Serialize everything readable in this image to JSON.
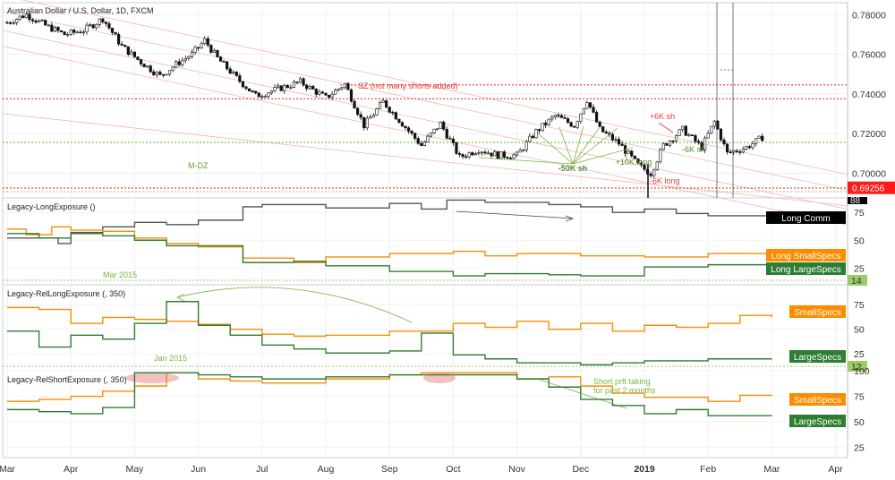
{
  "chart_data": {
    "type": "candlestick",
    "title": "Australian Dollar / U.S. Dollar, 1D, FXCM",
    "x_months": [
      "Mar",
      "Apr",
      "May",
      "Jun",
      "Jul",
      "Aug",
      "Sep",
      "Oct",
      "Nov",
      "Dec",
      "2019",
      "Feb",
      "Mar",
      "Apr"
    ],
    "price_panel": {
      "ylim": [
        0.6875,
        0.786
      ],
      "ticks": [
        "0.78000",
        "0.76000",
        "0.74000",
        "0.72000",
        "0.70000"
      ],
      "last_price_label": "0.69256",
      "last_price": 0.6926,
      "close_path": [
        {
          "m": 0.0,
          "v": 0.776
        },
        {
          "m": 0.3,
          "v": 0.78
        },
        {
          "m": 0.6,
          "v": 0.7745
        },
        {
          "m": 0.9,
          "v": 0.77
        },
        {
          "m": 1.2,
          "v": 0.772
        },
        {
          "m": 1.5,
          "v": 0.778
        },
        {
          "m": 1.8,
          "v": 0.764
        },
        {
          "m": 2.1,
          "v": 0.756
        },
        {
          "m": 2.4,
          "v": 0.749
        },
        {
          "m": 2.7,
          "v": 0.756
        },
        {
          "m": 2.9,
          "v": 0.76
        },
        {
          "m": 3.1,
          "v": 0.767
        },
        {
          "m": 3.3,
          "v": 0.758
        },
        {
          "m": 3.6,
          "v": 0.748
        },
        {
          "m": 3.9,
          "v": 0.739
        },
        {
          "m": 4.2,
          "v": 0.742
        },
        {
          "m": 4.6,
          "v": 0.746
        },
        {
          "m": 5.0,
          "v": 0.738
        },
        {
          "m": 5.3,
          "v": 0.745
        },
        {
          "m": 5.6,
          "v": 0.724
        },
        {
          "m": 5.9,
          "v": 0.736
        },
        {
          "m": 6.2,
          "v": 0.725
        },
        {
          "m": 6.5,
          "v": 0.714
        },
        {
          "m": 6.8,
          "v": 0.725
        },
        {
          "m": 7.1,
          "v": 0.708
        },
        {
          "m": 7.4,
          "v": 0.712
        },
        {
          "m": 7.7,
          "v": 0.709
        },
        {
          "m": 8.0,
          "v": 0.709
        },
        {
          "m": 8.3,
          "v": 0.721
        },
        {
          "m": 8.6,
          "v": 0.729
        },
        {
          "m": 8.9,
          "v": 0.724
        },
        {
          "m": 9.1,
          "v": 0.737
        },
        {
          "m": 9.3,
          "v": 0.722
        },
        {
          "m": 9.6,
          "v": 0.715
        },
        {
          "m": 9.9,
          "v": 0.704
        },
        {
          "m": 10.1,
          "v": 0.7
        },
        {
          "m": 10.3,
          "v": 0.714
        },
        {
          "m": 10.6,
          "v": 0.722
        },
        {
          "m": 10.9,
          "v": 0.713
        },
        {
          "m": 11.1,
          "v": 0.726
        },
        {
          "m": 11.3,
          "v": 0.71
        },
        {
          "m": 11.6,
          "v": 0.713
        },
        {
          "m": 11.9,
          "v": 0.719
        }
      ],
      "lines": [
        {
          "kind": "resistance",
          "value": 0.7445,
          "color": "#e53935"
        },
        {
          "kind": "resistance",
          "value": 0.7375,
          "color": "#e53935"
        },
        {
          "kind": "support",
          "value": 0.7155,
          "color": "#7cb342"
        },
        {
          "kind": "support",
          "value": 0.6925,
          "color": "#e53935"
        }
      ],
      "annotations": [
        {
          "text": "SZ (not many shorts added)",
          "color": "#e53935"
        },
        {
          "text": "M-DZ",
          "color": "#689f38"
        },
        {
          "text": "-50K sh",
          "color": "#558b2f"
        },
        {
          "text": "+10K long",
          "color": "#558b2f"
        },
        {
          "text": "-6K long",
          "color": "#e53935"
        },
        {
          "text": "+6K sh",
          "color": "#e53935"
        },
        {
          "text": "-6K sh",
          "color": "#558b2f"
        }
      ]
    },
    "panels": [
      {
        "name": "Legacy-LongExposure ()",
        "ylim": [
          10,
          88
        ],
        "ticks": [
          75,
          50,
          25
        ],
        "top_tag": "88",
        "min_tag": "14",
        "note": "Mar 2015",
        "series": [
          {
            "name": "Long Comm",
            "color": "#555555",
            "label_bg": "#000000",
            "points": [
              [
                0,
                52
              ],
              [
                0.8,
                47
              ],
              [
                1.0,
                57
              ],
              [
                1.5,
                62
              ],
              [
                2.0,
                66
              ],
              [
                2.5,
                64
              ],
              [
                3.0,
                68
              ],
              [
                3.5,
                68
              ],
              [
                3.7,
                80
              ],
              [
                4.0,
                82
              ],
              [
                5.0,
                79
              ],
              [
                6.0,
                83
              ],
              [
                6.5,
                78
              ],
              [
                6.9,
                86
              ],
              [
                7.5,
                84
              ],
              [
                8.5,
                82
              ],
              [
                9.0,
                80
              ],
              [
                9.5,
                75
              ],
              [
                10.0,
                78
              ],
              [
                10.5,
                74
              ],
              [
                11.0,
                72
              ],
              [
                12.0,
                72
              ]
            ]
          },
          {
            "name": "Long SmallSpecs",
            "color": "#fb8c00",
            "label_bg": "#fb8c00",
            "points": [
              [
                0,
                60
              ],
              [
                0.3,
                55
              ],
              [
                0.7,
                62
              ],
              [
                1.0,
                59
              ],
              [
                1.5,
                58
              ],
              [
                2.0,
                52
              ],
              [
                2.5,
                47
              ],
              [
                3.0,
                44
              ],
              [
                3.7,
                34
              ],
              [
                4.5,
                30
              ],
              [
                5.0,
                35
              ],
              [
                6.0,
                38
              ],
              [
                7.0,
                40
              ],
              [
                7.5,
                36
              ],
              [
                8.0,
                38
              ],
              [
                9.0,
                36
              ],
              [
                10.0,
                35
              ],
              [
                11.0,
                38
              ],
              [
                12.0,
                38
              ]
            ]
          },
          {
            "name": "Long LargeSpecs",
            "color": "#2e7d32",
            "label_bg": "#2e7d32",
            "points": [
              [
                0,
                56
              ],
              [
                0.5,
                52
              ],
              [
                1.0,
                56
              ],
              [
                1.5,
                54
              ],
              [
                2.0,
                50
              ],
              [
                2.5,
                45
              ],
              [
                3.0,
                45
              ],
              [
                3.7,
                30
              ],
              [
                4.5,
                31
              ],
              [
                5.0,
                27
              ],
              [
                6.0,
                22
              ],
              [
                7.0,
                18
              ],
              [
                7.5,
                20
              ],
              [
                8.5,
                19
              ],
              [
                9.0,
                18
              ],
              [
                10.0,
                26
              ],
              [
                11.0,
                28
              ],
              [
                12.0,
                28
              ]
            ]
          }
        ]
      },
      {
        "name": "Legacy-RelLongExposure (, 350)",
        "ylim": [
          8,
          95
        ],
        "ticks": [
          75,
          50,
          25
        ],
        "min_tag": "12",
        "note": "Jan 2015",
        "series": [
          {
            "name": "SmallSpecs",
            "color": "#fb8c00",
            "label_bg": "#fb8c00",
            "points": [
              [
                0,
                72
              ],
              [
                0.5,
                70
              ],
              [
                1.0,
                56
              ],
              [
                1.5,
                62
              ],
              [
                2.0,
                60
              ],
              [
                2.5,
                58
              ],
              [
                3.0,
                55
              ],
              [
                3.5,
                50
              ],
              [
                4.0,
                45
              ],
              [
                4.5,
                43
              ],
              [
                5.0,
                44
              ],
              [
                6.0,
                48
              ],
              [
                7.0,
                56
              ],
              [
                7.5,
                52
              ],
              [
                8.0,
                58
              ],
              [
                8.5,
                50
              ],
              [
                9.0,
                56
              ],
              [
                9.5,
                48
              ],
              [
                10.0,
                54
              ],
              [
                10.5,
                52
              ],
              [
                11.0,
                56
              ],
              [
                11.5,
                64
              ],
              [
                12.0,
                62
              ]
            ]
          },
          {
            "name": "LargeSpecs",
            "color": "#2e7d32",
            "label_bg": "#2e7d32",
            "points": [
              [
                0,
                48
              ],
              [
                0.5,
                32
              ],
              [
                1.0,
                44
              ],
              [
                1.5,
                40
              ],
              [
                2.0,
                56
              ],
              [
                2.5,
                78
              ],
              [
                3.0,
                54
              ],
              [
                3.5,
                44
              ],
              [
                4.0,
                34
              ],
              [
                4.5,
                30
              ],
              [
                5.0,
                26
              ],
              [
                6.0,
                28
              ],
              [
                6.5,
                46
              ],
              [
                7.0,
                24
              ],
              [
                7.5,
                20
              ],
              [
                8.0,
                16
              ],
              [
                9.0,
                14
              ],
              [
                9.5,
                16
              ],
              [
                10.0,
                18
              ],
              [
                11.0,
                20
              ],
              [
                12.0,
                20
              ]
            ]
          }
        ]
      },
      {
        "name": "Legacy-RelShortExposure (, 350)",
        "ylim": [
          15,
          100
        ],
        "ticks": [
          100,
          75,
          50,
          25
        ],
        "series": [
          {
            "name": "SmallSpecs",
            "color": "#fb8c00",
            "label_bg": "#fb8c00",
            "points": [
              [
                0,
                70
              ],
              [
                0.5,
                72
              ],
              [
                1.0,
                75
              ],
              [
                1.5,
                80
              ],
              [
                2.0,
                85
              ],
              [
                2.5,
                98
              ],
              [
                3.0,
                92
              ],
              [
                3.5,
                90
              ],
              [
                4.0,
                88
              ],
              [
                5.0,
                92
              ],
              [
                6.0,
                96
              ],
              [
                6.5,
                98
              ],
              [
                7.0,
                98
              ],
              [
                8.0,
                92
              ],
              [
                8.5,
                94
              ],
              [
                9.0,
                85
              ],
              [
                9.5,
                78
              ],
              [
                10.0,
                74
              ],
              [
                11.0,
                70
              ],
              [
                11.5,
                76
              ],
              [
                12.0,
                76
              ]
            ]
          },
          {
            "name": "LargeSpecs",
            "color": "#2e7d32",
            "label_bg": "#2e7d32",
            "points": [
              [
                0,
                62
              ],
              [
                0.5,
                60
              ],
              [
                1.0,
                58
              ],
              [
                1.5,
                64
              ],
              [
                2.0,
                98
              ],
              [
                3.0,
                96
              ],
              [
                3.5,
                94
              ],
              [
                4.0,
                92
              ],
              [
                5.0,
                94
              ],
              [
                6.0,
                96
              ],
              [
                7.0,
                96
              ],
              [
                8.0,
                92
              ],
              [
                8.5,
                84
              ],
              [
                9.0,
                72
              ],
              [
                9.5,
                66
              ],
              [
                10.0,
                58
              ],
              [
                10.5,
                62
              ],
              [
                11.0,
                56
              ],
              [
                12.0,
                56
              ]
            ]
          }
        ],
        "annotations": [
          {
            "text": "Short prft taking",
            "color": "#7cb342"
          },
          {
            "text": "for past 2 months",
            "color": "#7cb342"
          }
        ]
      }
    ]
  }
}
